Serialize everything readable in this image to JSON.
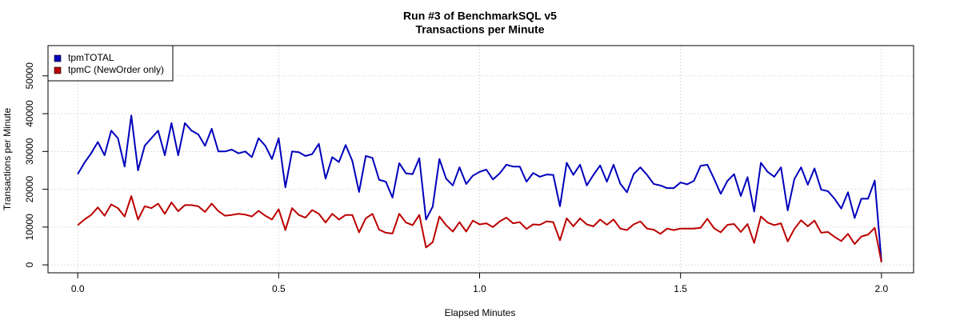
{
  "chart_data": {
    "type": "line",
    "title": "Run #3 of BenchmarkSQL v5",
    "subtitle": "Transactions per Minute",
    "x_label": "Elapsed Minutes",
    "y_label": "Transactions per Minute",
    "x": [
      0,
      0.0167,
      0.0333,
      0.05,
      0.0667,
      0.0833,
      0.1,
      0.1167,
      0.1333,
      0.15,
      0.1667,
      0.1833,
      0.2,
      0.2167,
      0.2333,
      0.25,
      0.2667,
      0.2833,
      0.3,
      0.3167,
      0.3333,
      0.35,
      0.3667,
      0.3833,
      0.4,
      0.4167,
      0.4333,
      0.45,
      0.4667,
      0.4833,
      0.5,
      0.5167,
      0.5333,
      0.55,
      0.5667,
      0.5833,
      0.6,
      0.6167,
      0.6333,
      0.65,
      0.6667,
      0.6833,
      0.7,
      0.7167,
      0.7333,
      0.75,
      0.7667,
      0.7833,
      0.8,
      0.8167,
      0.8333,
      0.85,
      0.8667,
      0.8833,
      0.9,
      0.9167,
      0.9333,
      0.95,
      0.9667,
      0.9833,
      1,
      1.0167,
      1.0333,
      1.05,
      1.0667,
      1.0833,
      1.1,
      1.1167,
      1.1333,
      1.15,
      1.1667,
      1.1833,
      1.2,
      1.2167,
      1.2333,
      1.25,
      1.2667,
      1.2833,
      1.3,
      1.3167,
      1.3333,
      1.35,
      1.3667,
      1.3833,
      1.4,
      1.4167,
      1.4333,
      1.45,
      1.4667,
      1.4833,
      1.5,
      1.5167,
      1.5333,
      1.55,
      1.5667,
      1.5833,
      1.6,
      1.6167,
      1.6333,
      1.65,
      1.6667,
      1.6833,
      1.7,
      1.7167,
      1.7333,
      1.75,
      1.7667,
      1.7833,
      1.8,
      1.8167,
      1.8333,
      1.85,
      1.8667,
      1.8833,
      1.9,
      1.9167,
      1.9333,
      1.95,
      1.9667,
      1.9833,
      2
    ],
    "series": [
      {
        "name": "tpmTOTAL",
        "color": "#0000bb",
        "values": [
          24000,
          27000,
          29500,
          32500,
          29000,
          35500,
          33500,
          26000,
          39500,
          25000,
          31500,
          33500,
          35500,
          29000,
          37500,
          29000,
          37500,
          35500,
          34500,
          31500,
          36000,
          30000,
          30000,
          30500,
          29500,
          30000,
          28500,
          33500,
          31500,
          28000,
          33500,
          20500,
          30000,
          29800,
          28800,
          29300,
          32000,
          22800,
          28500,
          27200,
          31700,
          27500,
          19300,
          28800,
          28300,
          22500,
          22000,
          17800,
          26900,
          24200,
          24000,
          28200,
          12000,
          15400,
          28000,
          22800,
          21000,
          25800,
          21400,
          23600,
          24600,
          25200,
          22600,
          24200,
          26500,
          26000,
          26000,
          22000,
          24300,
          23300,
          23900,
          23800,
          15500,
          27000,
          23800,
          26500,
          21000,
          23800,
          26300,
          22000,
          26500,
          21500,
          19200,
          24000,
          25800,
          23800,
          21400,
          21000,
          20300,
          20300,
          21800,
          21300,
          22200,
          26200,
          26500,
          22800,
          18800,
          22200,
          24000,
          18200,
          23200,
          14100,
          27000,
          24600,
          23300,
          25800,
          14400,
          22700,
          25800,
          21200,
          25500,
          19900,
          19500,
          17500,
          14900,
          19200,
          12400,
          17500,
          17500,
          22300,
          800
        ]
      },
      {
        "name": "tpmC (NewOrder only)",
        "color": "#bb0000",
        "values": [
          10500,
          12000,
          13200,
          15200,
          13000,
          16000,
          15000,
          12800,
          18200,
          12000,
          15500,
          15000,
          16200,
          13500,
          16500,
          14200,
          15800,
          15800,
          15500,
          14000,
          16200,
          14200,
          13000,
          13200,
          13500,
          13300,
          12800,
          14300,
          13000,
          12000,
          14700,
          9200,
          15000,
          13200,
          12500,
          14500,
          13500,
          11200,
          13500,
          12000,
          13200,
          13200,
          8600,
          12300,
          13500,
          9300,
          8500,
          8300,
          13500,
          11200,
          10500,
          13200,
          4600,
          6000,
          12800,
          10500,
          8800,
          11300,
          8800,
          11700,
          10700,
          11000,
          10000,
          11500,
          12500,
          11000,
          11300,
          9500,
          10700,
          10600,
          11500,
          11300,
          6500,
          12300,
          10200,
          12300,
          10700,
          10200,
          12000,
          10600,
          12000,
          9600,
          9200,
          10700,
          11500,
          9600,
          9300,
          8200,
          9600,
          9200,
          9600,
          9600,
          9600,
          9800,
          12200,
          9700,
          8600,
          10600,
          10800,
          8700,
          10800,
          5800,
          12800,
          11200,
          10500,
          11000,
          6200,
          9500,
          11800,
          10200,
          11700,
          8500,
          8700,
          7400,
          6300,
          8200,
          5500,
          7500,
          8000,
          9800,
          700
        ]
      }
    ],
    "xlim": [
      -0.074,
      2.08
    ],
    "ylim": [
      -2100,
      58000
    ],
    "xticks": [
      {
        "value": 0,
        "label": "0.0"
      },
      0.5,
      {
        "value": 1,
        "label": "1.0"
      },
      1.5,
      {
        "value": 2,
        "label": "2.0"
      }
    ],
    "yticks": [
      0,
      10000,
      20000,
      30000,
      40000,
      50000
    ],
    "grid": true,
    "legend": "top-left"
  }
}
